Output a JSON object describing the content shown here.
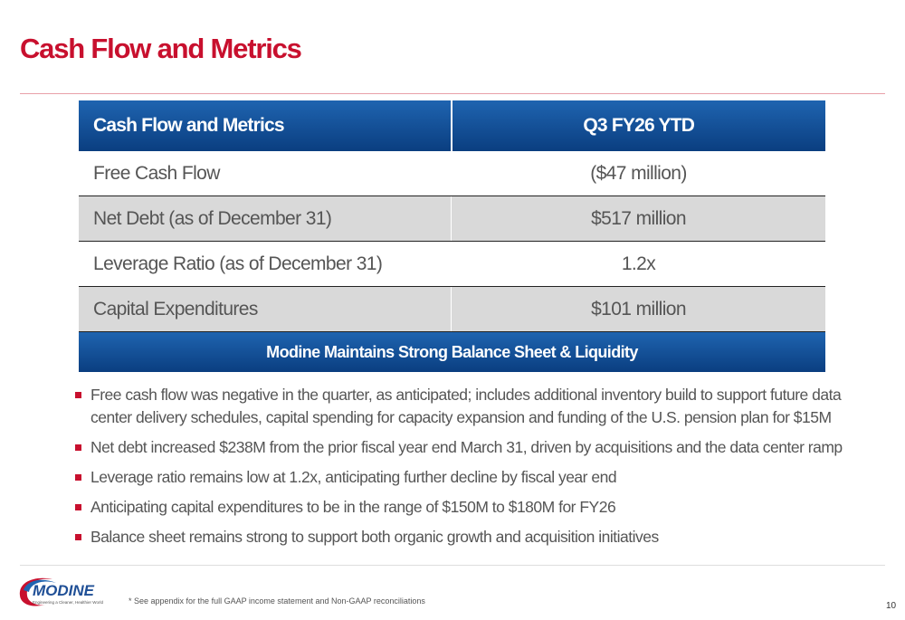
{
  "header": {
    "title": "Cash Flow and Metrics"
  },
  "table": {
    "columns": [
      "Cash Flow and Metrics",
      "Q3 FY26 YTD"
    ],
    "rows": [
      [
        "Free Cash Flow",
        "($47 million)"
      ],
      [
        "Net Debt (as of December 31)",
        "$517 million"
      ],
      [
        "Leverage Ratio (as of December 31)",
        "1.2x"
      ],
      [
        "Capital Expenditures",
        "$101 million"
      ]
    ]
  },
  "banner": "Modine Maintains Strong Balance Sheet & Liquidity",
  "bullets": [
    "Free cash flow was negative in the quarter, as anticipated; includes additional inventory build to support future data center delivery schedules, capital spending for capacity expansion and funding of the U.S. pension plan for $15M",
    "Net debt increased $238M from the prior fiscal year end March 31, driven by acquisitions and the data center ramp",
    "Leverage ratio remains low at 1.2x, anticipating further decline by fiscal year end",
    "Anticipating capital expenditures to be in the range of $150M to $180M for FY26",
    "Balance sheet remains strong to support both organic growth and acquisition initiatives"
  ],
  "footer": {
    "logo": "MODINE",
    "tagline": "Engineering a Cleaner, Healthier World",
    "note": "* See appendix for the full GAAP income statement and Non-GAAP reconciliations",
    "page": "10"
  }
}
